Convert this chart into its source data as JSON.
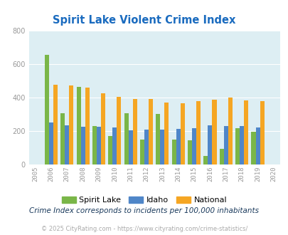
{
  "title": "Spirit Lake Violent Crime Index",
  "years": [
    2005,
    2006,
    2007,
    2008,
    2009,
    2010,
    2011,
    2012,
    2013,
    2014,
    2015,
    2016,
    2017,
    2018,
    2019,
    2020
  ],
  "spirit_lake": [
    null,
    655,
    308,
    462,
    230,
    168,
    308,
    150,
    303,
    148,
    145,
    50,
    93,
    215,
    197,
    null
  ],
  "idaho": [
    null,
    250,
    235,
    225,
    225,
    220,
    203,
    207,
    207,
    212,
    215,
    232,
    228,
    228,
    220,
    null
  ],
  "national": [
    null,
    478,
    472,
    458,
    427,
    403,
    390,
    390,
    368,
    365,
    380,
    388,
    400,
    383,
    380,
    null
  ],
  "ylim": [
    0,
    800
  ],
  "yticks": [
    0,
    200,
    400,
    600,
    800
  ],
  "bar_width": 0.27,
  "colors": {
    "spirit_lake": "#7ab648",
    "idaho": "#4f86c8",
    "national": "#f5a623"
  },
  "bg_color": "#ddeef3",
  "grid_color": "#ffffff",
  "title_color": "#1a6bbf",
  "legend_labels": [
    "Spirit Lake",
    "Idaho",
    "National"
  ],
  "footnote1": "Crime Index corresponds to incidents per 100,000 inhabitants",
  "footnote2": "© 2025 CityRating.com - https://www.cityrating.com/crime-statistics/",
  "footnote1_color": "#1a3a5c",
  "footnote2_color": "#aaaaaa",
  "tick_color": "#999999"
}
